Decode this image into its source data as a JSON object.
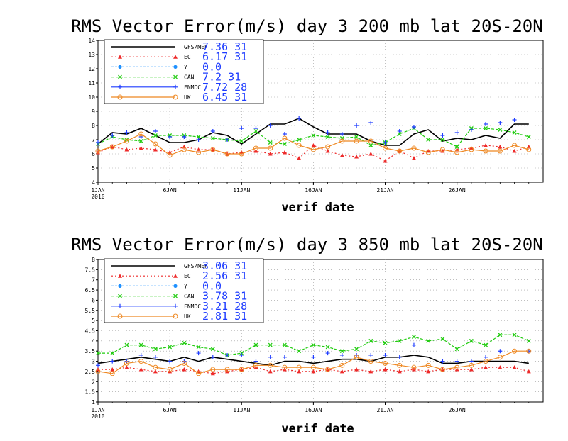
{
  "colors": {
    "GFS/MEF": "#000000",
    "EC": "#ee2a2a",
    "Y": "#1e90ff",
    "CAN": "#22cc11",
    "FNMOC": "#1e3cff",
    "UK": "#ee8822"
  },
  "chart_data": [
    {
      "type": "line",
      "title": "RMS Vector Error(m/s) day 3  200 mb   lat 20S-20N",
      "xlabel": "verif date",
      "ylabel": "",
      "ylim": [
        4,
        14
      ],
      "yticks": [
        "4",
        "5",
        "6",
        "7",
        "8",
        "9",
        "10",
        "11",
        "12",
        "13",
        "14"
      ],
      "xticks": [
        "1JAN\n2010",
        "6JAN",
        "11JAN",
        "16JAN",
        "21JAN",
        "26JAN"
      ],
      "x": [
        "2010-01-01",
        "2010-01-02",
        "2010-01-03",
        "2010-01-04",
        "2010-01-05",
        "2010-01-06",
        "2010-01-07",
        "2010-01-08",
        "2010-01-09",
        "2010-01-10",
        "2010-01-11",
        "2010-01-12",
        "2010-01-13",
        "2010-01-14",
        "2010-01-15",
        "2010-01-16",
        "2010-01-17",
        "2010-01-18",
        "2010-01-19",
        "2010-01-20",
        "2010-01-21",
        "2010-01-22",
        "2010-01-23",
        "2010-01-24",
        "2010-01-25",
        "2010-01-26",
        "2010-01-27",
        "2010-01-28",
        "2010-01-29",
        "2010-01-30",
        "2010-01-31"
      ],
      "grid": true,
      "legend": [
        {
          "name": "GFS/MEF",
          "stat": "7.36  31"
        },
        {
          "name": "EC",
          "stat": "6.17  31"
        },
        {
          "name": "Y",
          "stat": "0.0"
        },
        {
          "name": "CAN",
          "stat": "7.2  31"
        },
        {
          "name": "FNMOC",
          "stat": "7.72  28"
        },
        {
          "name": "UK",
          "stat": "6.45  31"
        }
      ],
      "series": [
        {
          "name": "GFS/MEF",
          "values": [
            6.7,
            7.5,
            7.4,
            7.8,
            7.3,
            6.8,
            6.8,
            7.0,
            7.5,
            7.3,
            6.7,
            7.4,
            8.1,
            8.1,
            8.5,
            7.9,
            7.4,
            7.4,
            7.4,
            6.9,
            6.6,
            6.6,
            7.4,
            7.7,
            6.9,
            7.1,
            7.0,
            7.3,
            7.1,
            8.1,
            8.1
          ]
        },
        {
          "name": "EC",
          "values": [
            6.1,
            6.5,
            6.3,
            6.4,
            6.3,
            6.1,
            6.5,
            6.3,
            6.3,
            6.0,
            6.1,
            6.2,
            6.0,
            6.1,
            5.7,
            6.6,
            6.2,
            5.9,
            5.8,
            6.0,
            5.5,
            6.2,
            5.7,
            6.2,
            6.2,
            6.3,
            6.4,
            6.6,
            6.5,
            6.2,
            6.5
          ]
        },
        {
          "name": "CAN",
          "values": [
            6.7,
            7.2,
            7.0,
            6.9,
            7.3,
            7.3,
            7.3,
            7.2,
            7.1,
            7.0,
            6.9,
            7.6,
            6.8,
            6.7,
            7.0,
            7.3,
            7.2,
            7.1,
            7.2,
            6.6,
            6.8,
            7.4,
            7.8,
            7.0,
            7.0,
            6.5,
            7.8,
            7.8,
            7.7,
            7.5,
            7.2
          ]
        },
        {
          "name": "FNMOC",
          "values": [
            6.8,
            7.3,
            7.5,
            7.2,
            7.6,
            7.2,
            7.2,
            7.0,
            7.6,
            7.0,
            7.8,
            7.8,
            8.0,
            7.4,
            8.5,
            null,
            7.5,
            7.4,
            8.0,
            8.2,
            6.8,
            7.6,
            7.9,
            null,
            7.3,
            7.5,
            7.7,
            8.1,
            8.2,
            8.4,
            null
          ]
        },
        {
          "name": "UK",
          "values": [
            6.2,
            6.5,
            6.9,
            7.4,
            6.7,
            5.9,
            6.3,
            6.1,
            6.3,
            6.0,
            6.0,
            6.4,
            6.4,
            7.1,
            6.6,
            6.3,
            6.5,
            6.9,
            6.9,
            6.9,
            6.4,
            6.2,
            6.4,
            6.1,
            6.3,
            6.1,
            6.3,
            6.2,
            6.2,
            6.6,
            6.3
          ]
        }
      ]
    },
    {
      "type": "line",
      "title": "RMS Vector Error(m/s) day 3  850 mb   lat 20S-20N",
      "xlabel": "verif date",
      "ylabel": "",
      "ylim": [
        1,
        8
      ],
      "yticks": [
        "1",
        "1.5",
        "2",
        "2.5",
        "3",
        "3.5",
        "4",
        "4.5",
        "5",
        "5.5",
        "6",
        "6.5",
        "7",
        "7.5",
        "8"
      ],
      "xticks": [
        "1JAN\n2010",
        "6JAN",
        "11JAN",
        "16JAN",
        "21JAN",
        "26JAN"
      ],
      "x": [
        "2010-01-01",
        "2010-01-02",
        "2010-01-03",
        "2010-01-04",
        "2010-01-05",
        "2010-01-06",
        "2010-01-07",
        "2010-01-08",
        "2010-01-09",
        "2010-01-10",
        "2010-01-11",
        "2010-01-12",
        "2010-01-13",
        "2010-01-14",
        "2010-01-15",
        "2010-01-16",
        "2010-01-17",
        "2010-01-18",
        "2010-01-19",
        "2010-01-20",
        "2010-01-21",
        "2010-01-22",
        "2010-01-23",
        "2010-01-24",
        "2010-01-25",
        "2010-01-26",
        "2010-01-27",
        "2010-01-28",
        "2010-01-29",
        "2010-01-30",
        "2010-01-31"
      ],
      "grid": true,
      "legend": [
        {
          "name": "GFS/MEF",
          "stat": "3.06  31"
        },
        {
          "name": "EC",
          "stat": "2.56  31"
        },
        {
          "name": "Y",
          "stat": "0.0"
        },
        {
          "name": "CAN",
          "stat": "3.78  31"
        },
        {
          "name": "FNMOC",
          "stat": "3.21  28"
        },
        {
          "name": "UK",
          "stat": "2.81  31"
        }
      ],
      "series": [
        {
          "name": "GFS/MEF",
          "values": [
            2.9,
            3.0,
            3.1,
            3.2,
            3.1,
            3.0,
            3.2,
            3.0,
            3.2,
            3.1,
            3.0,
            2.9,
            2.8,
            3.0,
            3.0,
            2.9,
            3.0,
            3.1,
            3.1,
            3.0,
            3.2,
            3.2,
            3.3,
            3.2,
            2.9,
            2.9,
            3.0,
            3.0,
            3.0,
            3.0,
            2.9
          ]
        },
        {
          "name": "EC",
          "values": [
            2.6,
            2.6,
            2.7,
            2.6,
            2.5,
            2.5,
            2.6,
            2.5,
            2.4,
            2.5,
            2.6,
            2.7,
            2.5,
            2.6,
            2.5,
            2.5,
            2.6,
            2.5,
            2.6,
            2.5,
            2.6,
            2.5,
            2.6,
            2.5,
            2.6,
            2.6,
            2.6,
            2.7,
            2.7,
            2.7,
            2.5
          ]
        },
        {
          "name": "CAN",
          "values": [
            3.4,
            3.4,
            3.8,
            3.8,
            3.6,
            3.7,
            3.9,
            3.7,
            3.6,
            3.3,
            3.4,
            3.8,
            3.8,
            3.8,
            3.5,
            3.8,
            3.7,
            3.5,
            3.6,
            4.0,
            3.9,
            4.0,
            4.2,
            4.0,
            4.1,
            3.6,
            4.0,
            3.8,
            4.3,
            4.3,
            4.0
          ]
        },
        {
          "name": "FNMOC",
          "values": [
            2.8,
            3.0,
            3.0,
            3.3,
            3.2,
            3.0,
            3.0,
            3.4,
            3.2,
            3.3,
            3.3,
            3.0,
            3.2,
            3.2,
            null,
            3.2,
            3.4,
            3.3,
            3.3,
            3.3,
            3.3,
            3.2,
            3.8,
            null,
            3.0,
            3.0,
            3.0,
            3.2,
            3.5,
            null,
            3.5
          ]
        },
        {
          "name": "UK",
          "values": [
            2.5,
            2.4,
            2.9,
            3.0,
            2.7,
            2.6,
            2.9,
            2.4,
            2.6,
            2.6,
            2.6,
            2.8,
            2.8,
            2.7,
            2.7,
            2.7,
            2.6,
            2.8,
            3.2,
            3.0,
            2.9,
            2.8,
            2.7,
            2.8,
            2.6,
            2.7,
            2.8,
            3.0,
            3.2,
            3.5,
            3.5
          ]
        }
      ]
    }
  ]
}
